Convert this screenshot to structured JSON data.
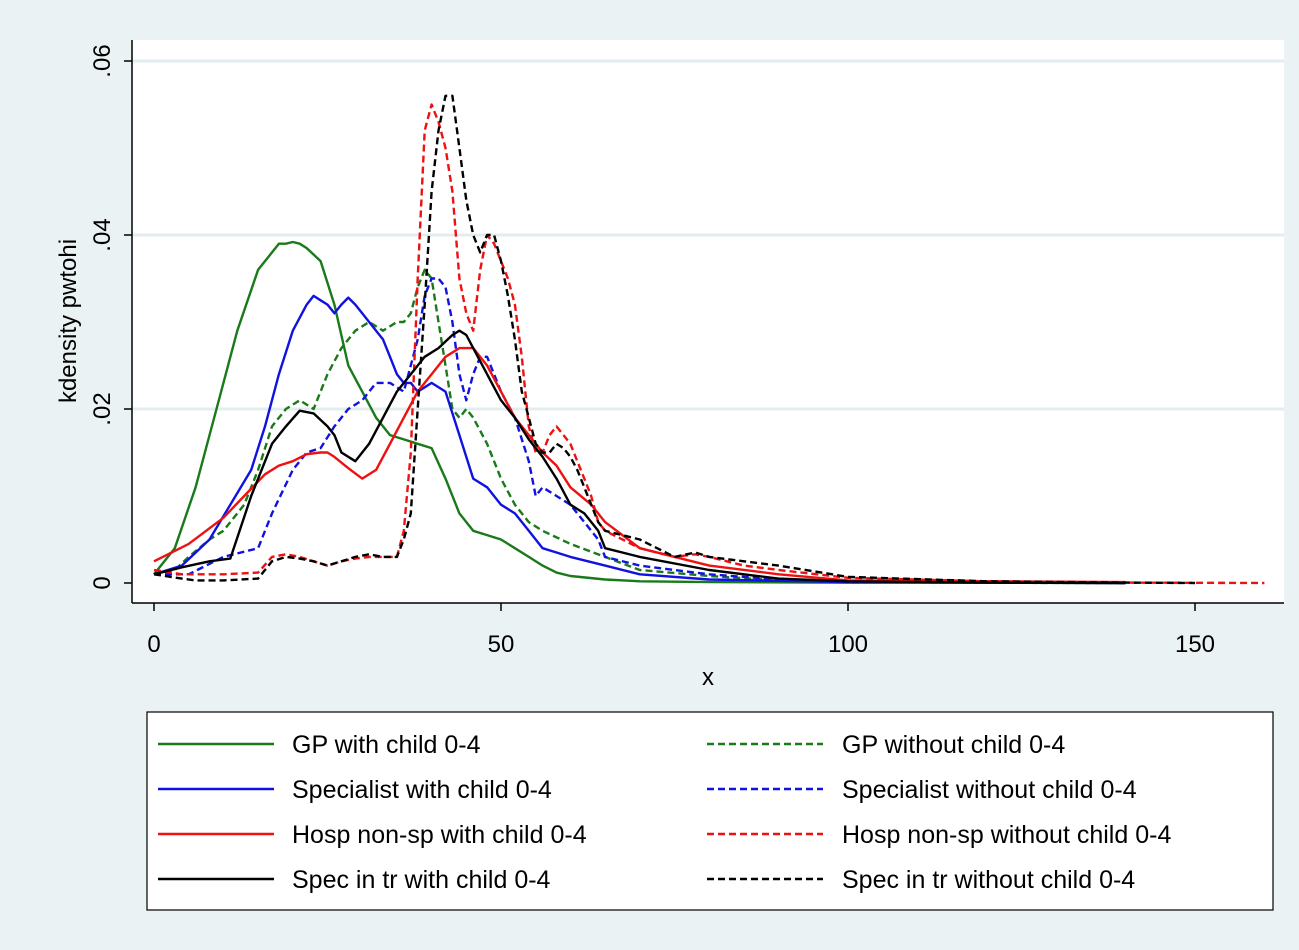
{
  "chart_data": {
    "type": "line",
    "xlabel": "x",
    "ylabel": "kdensity pwtohi",
    "xlim": [
      0,
      160
    ],
    "ylim": [
      0,
      0.06
    ],
    "x_ticks": [
      0,
      50,
      100,
      150
    ],
    "x_tick_labels": [
      "0",
      "50",
      "100",
      "150"
    ],
    "y_ticks": [
      0,
      0.02,
      0.04,
      0.06
    ],
    "y_tick_labels": [
      "0",
      ".02",
      ".04",
      ".06"
    ],
    "grid": true,
    "legend_position": "bottom",
    "series": [
      {
        "name": "GP with child 0-4",
        "color": "#1a7a1a",
        "dash": false,
        "x": [
          0,
          3,
          6,
          9,
          12,
          15,
          17,
          18,
          19,
          20,
          21,
          22,
          24,
          26,
          28,
          30,
          32,
          34,
          36,
          38,
          40,
          42,
          44,
          46,
          48,
          50,
          52,
          54,
          56,
          58,
          60,
          65,
          70,
          80,
          100,
          140
        ],
        "y": [
          0.001,
          0.004,
          0.011,
          0.02,
          0.029,
          0.036,
          0.038,
          0.039,
          0.039,
          0.0392,
          0.039,
          0.0385,
          0.037,
          0.032,
          0.025,
          0.022,
          0.019,
          0.017,
          0.0165,
          0.016,
          0.0155,
          0.012,
          0.008,
          0.006,
          0.0055,
          0.005,
          0.004,
          0.003,
          0.002,
          0.0012,
          0.0008,
          0.0004,
          0.0002,
          0.0001,
          3e-05,
          1e-05
        ]
      },
      {
        "name": "GP without child 0-4",
        "color": "#1a7a1a",
        "dash": true,
        "x": [
          0,
          3,
          5,
          8,
          10,
          13,
          15,
          17,
          19,
          21,
          23,
          25,
          27,
          29,
          31,
          33,
          35,
          36,
          37,
          38,
          39,
          40,
          41,
          42,
          43,
          44,
          45,
          46,
          48,
          50,
          52,
          54,
          56,
          60,
          65,
          70,
          80,
          90,
          100,
          120,
          140
        ],
        "y": [
          0.001,
          0.0015,
          0.003,
          0.005,
          0.006,
          0.009,
          0.013,
          0.018,
          0.02,
          0.021,
          0.02,
          0.024,
          0.027,
          0.029,
          0.03,
          0.029,
          0.03,
          0.03,
          0.031,
          0.034,
          0.036,
          0.035,
          0.03,
          0.025,
          0.02,
          0.019,
          0.02,
          0.019,
          0.016,
          0.012,
          0.009,
          0.007,
          0.006,
          0.0045,
          0.003,
          0.0015,
          0.0008,
          0.0003,
          0.0001,
          2e-05,
          0
        ]
      },
      {
        "name": "Specialist with child 0-4",
        "color": "#1212e0",
        "dash": false,
        "x": [
          0,
          4,
          8,
          11,
          14,
          16,
          18,
          20,
          22,
          23,
          24,
          25,
          26,
          27,
          28,
          29,
          30,
          32,
          33,
          34,
          35,
          36,
          37,
          38,
          39,
          40,
          42,
          44,
          46,
          48,
          50,
          52,
          54,
          56,
          58,
          60,
          65,
          70,
          80,
          100,
          140
        ],
        "y": [
          0.001,
          0.002,
          0.005,
          0.009,
          0.013,
          0.018,
          0.024,
          0.029,
          0.032,
          0.033,
          0.0325,
          0.032,
          0.031,
          0.032,
          0.0328,
          0.032,
          0.031,
          0.029,
          0.028,
          0.026,
          0.024,
          0.023,
          0.023,
          0.022,
          0.0225,
          0.023,
          0.022,
          0.017,
          0.012,
          0.011,
          0.009,
          0.008,
          0.006,
          0.004,
          0.0035,
          0.003,
          0.002,
          0.001,
          0.0004,
          0.0001,
          0
        ]
      },
      {
        "name": "Specialist without child 0-4",
        "color": "#1212e0",
        "dash": true,
        "x": [
          0,
          5,
          10,
          15,
          17,
          20,
          22,
          24,
          26,
          28,
          30,
          32,
          34,
          36,
          38,
          39,
          40,
          41,
          42,
          43,
          44,
          45,
          46,
          47,
          48,
          50,
          52,
          54,
          55,
          56,
          58,
          60,
          62,
          64,
          65,
          70,
          80,
          90,
          100,
          140
        ],
        "y": [
          0.001,
          0.001,
          0.003,
          0.004,
          0.008,
          0.013,
          0.015,
          0.0155,
          0.018,
          0.02,
          0.021,
          0.023,
          0.023,
          0.022,
          0.028,
          0.033,
          0.035,
          0.035,
          0.034,
          0.03,
          0.024,
          0.021,
          0.024,
          0.026,
          0.026,
          0.022,
          0.019,
          0.014,
          0.01,
          0.011,
          0.01,
          0.009,
          0.007,
          0.005,
          0.003,
          0.002,
          0.001,
          0.0004,
          0.0001,
          0
        ]
      },
      {
        "name": "Hosp non-sp with child 0-4",
        "color": "#ee1111",
        "dash": false,
        "x": [
          0,
          5,
          10,
          13,
          16,
          18,
          20,
          22,
          24,
          25,
          26,
          28,
          30,
          32,
          34,
          36,
          38,
          40,
          42,
          44,
          45,
          46,
          48,
          50,
          52,
          54,
          56,
          58,
          60,
          63,
          65,
          70,
          80,
          90,
          100,
          140
        ],
        "y": [
          0.0025,
          0.0045,
          0.0075,
          0.01,
          0.0125,
          0.0135,
          0.014,
          0.0148,
          0.015,
          0.015,
          0.0145,
          0.0132,
          0.012,
          0.013,
          0.016,
          0.019,
          0.022,
          0.024,
          0.026,
          0.027,
          0.027,
          0.027,
          0.025,
          0.022,
          0.019,
          0.017,
          0.015,
          0.0135,
          0.011,
          0.009,
          0.007,
          0.004,
          0.002,
          0.001,
          0.0003,
          0.0001
        ]
      },
      {
        "name": "Hosp non-sp without child 0-4",
        "color": "#ee1111",
        "dash": true,
        "x": [
          0,
          4,
          6,
          10,
          15,
          17,
          19,
          21,
          23,
          25,
          27,
          29,
          31,
          33,
          35,
          36,
          37,
          38,
          39,
          40,
          41,
          42,
          43,
          44,
          45,
          46,
          47,
          48,
          49,
          50,
          51,
          52,
          53,
          54,
          55,
          56,
          57,
          58,
          59,
          60,
          61,
          62,
          63,
          64,
          65,
          70,
          75,
          78,
          80,
          85,
          90,
          100,
          120,
          140,
          160
        ],
        "y": [
          0.0015,
          0.001,
          0.001,
          0.001,
          0.0012,
          0.003,
          0.0033,
          0.003,
          0.0025,
          0.002,
          0.0025,
          0.0028,
          0.003,
          0.003,
          0.003,
          0.006,
          0.015,
          0.035,
          0.052,
          0.055,
          0.053,
          0.05,
          0.045,
          0.035,
          0.031,
          0.029,
          0.036,
          0.04,
          0.039,
          0.037,
          0.035,
          0.032,
          0.026,
          0.018,
          0.015,
          0.015,
          0.017,
          0.018,
          0.017,
          0.016,
          0.014,
          0.012,
          0.01,
          0.007,
          0.006,
          0.004,
          0.003,
          0.0033,
          0.003,
          0.002,
          0.0015,
          0.0006,
          0.0002,
          5e-05,
          0
        ]
      },
      {
        "name": "Spec in tr with child 0-4",
        "color": "#000000",
        "dash": false,
        "x": [
          0,
          4,
          8,
          11,
          14,
          17,
          19,
          21,
          23,
          25,
          26,
          27,
          29,
          31,
          33,
          35,
          37,
          39,
          41,
          43,
          44,
          45,
          46,
          48,
          50,
          52,
          54,
          56,
          58,
          60,
          62,
          64,
          65,
          70,
          80,
          90,
          100,
          120,
          140
        ],
        "y": [
          0.001,
          0.0018,
          0.0025,
          0.0028,
          0.01,
          0.016,
          0.018,
          0.0198,
          0.0195,
          0.018,
          0.017,
          0.015,
          0.014,
          0.016,
          0.019,
          0.022,
          0.024,
          0.026,
          0.027,
          0.0285,
          0.029,
          0.0285,
          0.027,
          0.024,
          0.021,
          0.019,
          0.0165,
          0.0145,
          0.012,
          0.009,
          0.008,
          0.006,
          0.004,
          0.003,
          0.0015,
          0.0005,
          0.0002,
          5e-05,
          0
        ]
      },
      {
        "name": "Spec in tr without child 0-4",
        "color": "#000000",
        "dash": true,
        "x": [
          0,
          4,
          6,
          10,
          15,
          17,
          19,
          21,
          23,
          25,
          27,
          29,
          31,
          33,
          35,
          36,
          37,
          38,
          39,
          40,
          41,
          42,
          43,
          44,
          45,
          46,
          47,
          48,
          49,
          50,
          51,
          52,
          53,
          54,
          55,
          56,
          57,
          58,
          59,
          60,
          61,
          62,
          63,
          64,
          65,
          70,
          75,
          78,
          80,
          85,
          90,
          100,
          120,
          140,
          150
        ],
        "y": [
          0.001,
          0.0005,
          0.0003,
          0.0003,
          0.0005,
          0.0025,
          0.003,
          0.0028,
          0.0025,
          0.002,
          0.0025,
          0.003,
          0.0033,
          0.003,
          0.003,
          0.005,
          0.008,
          0.02,
          0.032,
          0.045,
          0.052,
          0.056,
          0.056,
          0.05,
          0.044,
          0.04,
          0.038,
          0.04,
          0.04,
          0.037,
          0.033,
          0.028,
          0.022,
          0.019,
          0.016,
          0.015,
          0.015,
          0.016,
          0.0155,
          0.0145,
          0.013,
          0.011,
          0.009,
          0.007,
          0.006,
          0.005,
          0.003,
          0.0035,
          0.003,
          0.0025,
          0.002,
          0.0007,
          0.0002,
          5e-05,
          0
        ]
      }
    ]
  }
}
